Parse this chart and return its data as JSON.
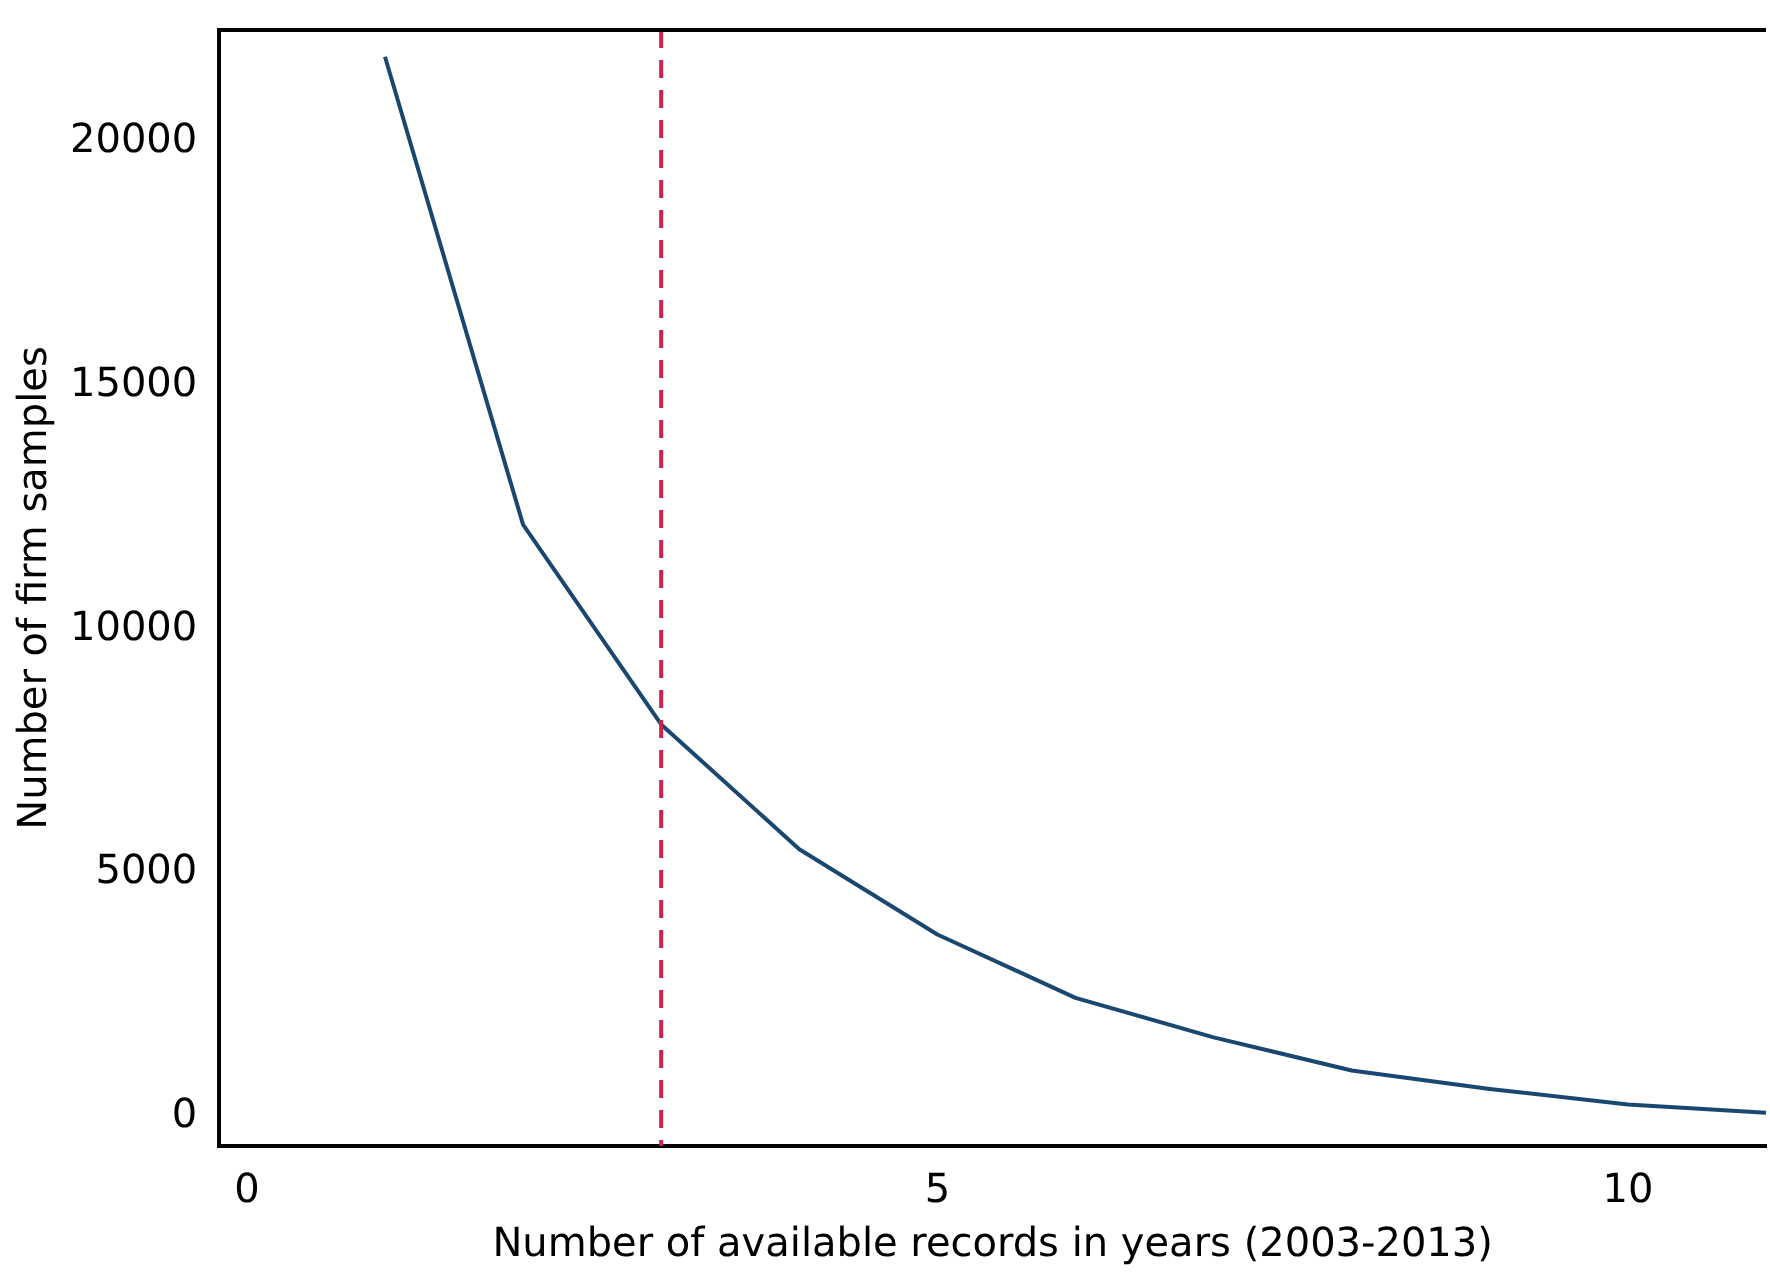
{
  "chart_data": {
    "type": "line",
    "xlabel": "Number of available records in years (2003-2013)",
    "ylabel": "Number of firm samples",
    "x": [
      1,
      2,
      3,
      4,
      5,
      6,
      7,
      8,
      9,
      10,
      11
    ],
    "series": [
      {
        "color": "#1a476f",
        "values": [
          21750,
          12150,
          8050,
          5490,
          3740,
          2440,
          1630,
          950,
          570,
          250,
          80
        ]
      }
    ],
    "xlim": [
      -0.2,
      11
    ],
    "xticks": [
      0,
      5,
      10
    ],
    "ylim": [
      -600,
      22300
    ],
    "yticks": [
      0,
      5000,
      10000,
      15000,
      20000
    ],
    "ref_lines": [
      {
        "axis": "x",
        "value": 3,
        "color": "#c8244c",
        "line_style": "dashed"
      }
    ],
    "grid": false,
    "legend": false,
    "marker": "none",
    "line_style": "solid"
  }
}
